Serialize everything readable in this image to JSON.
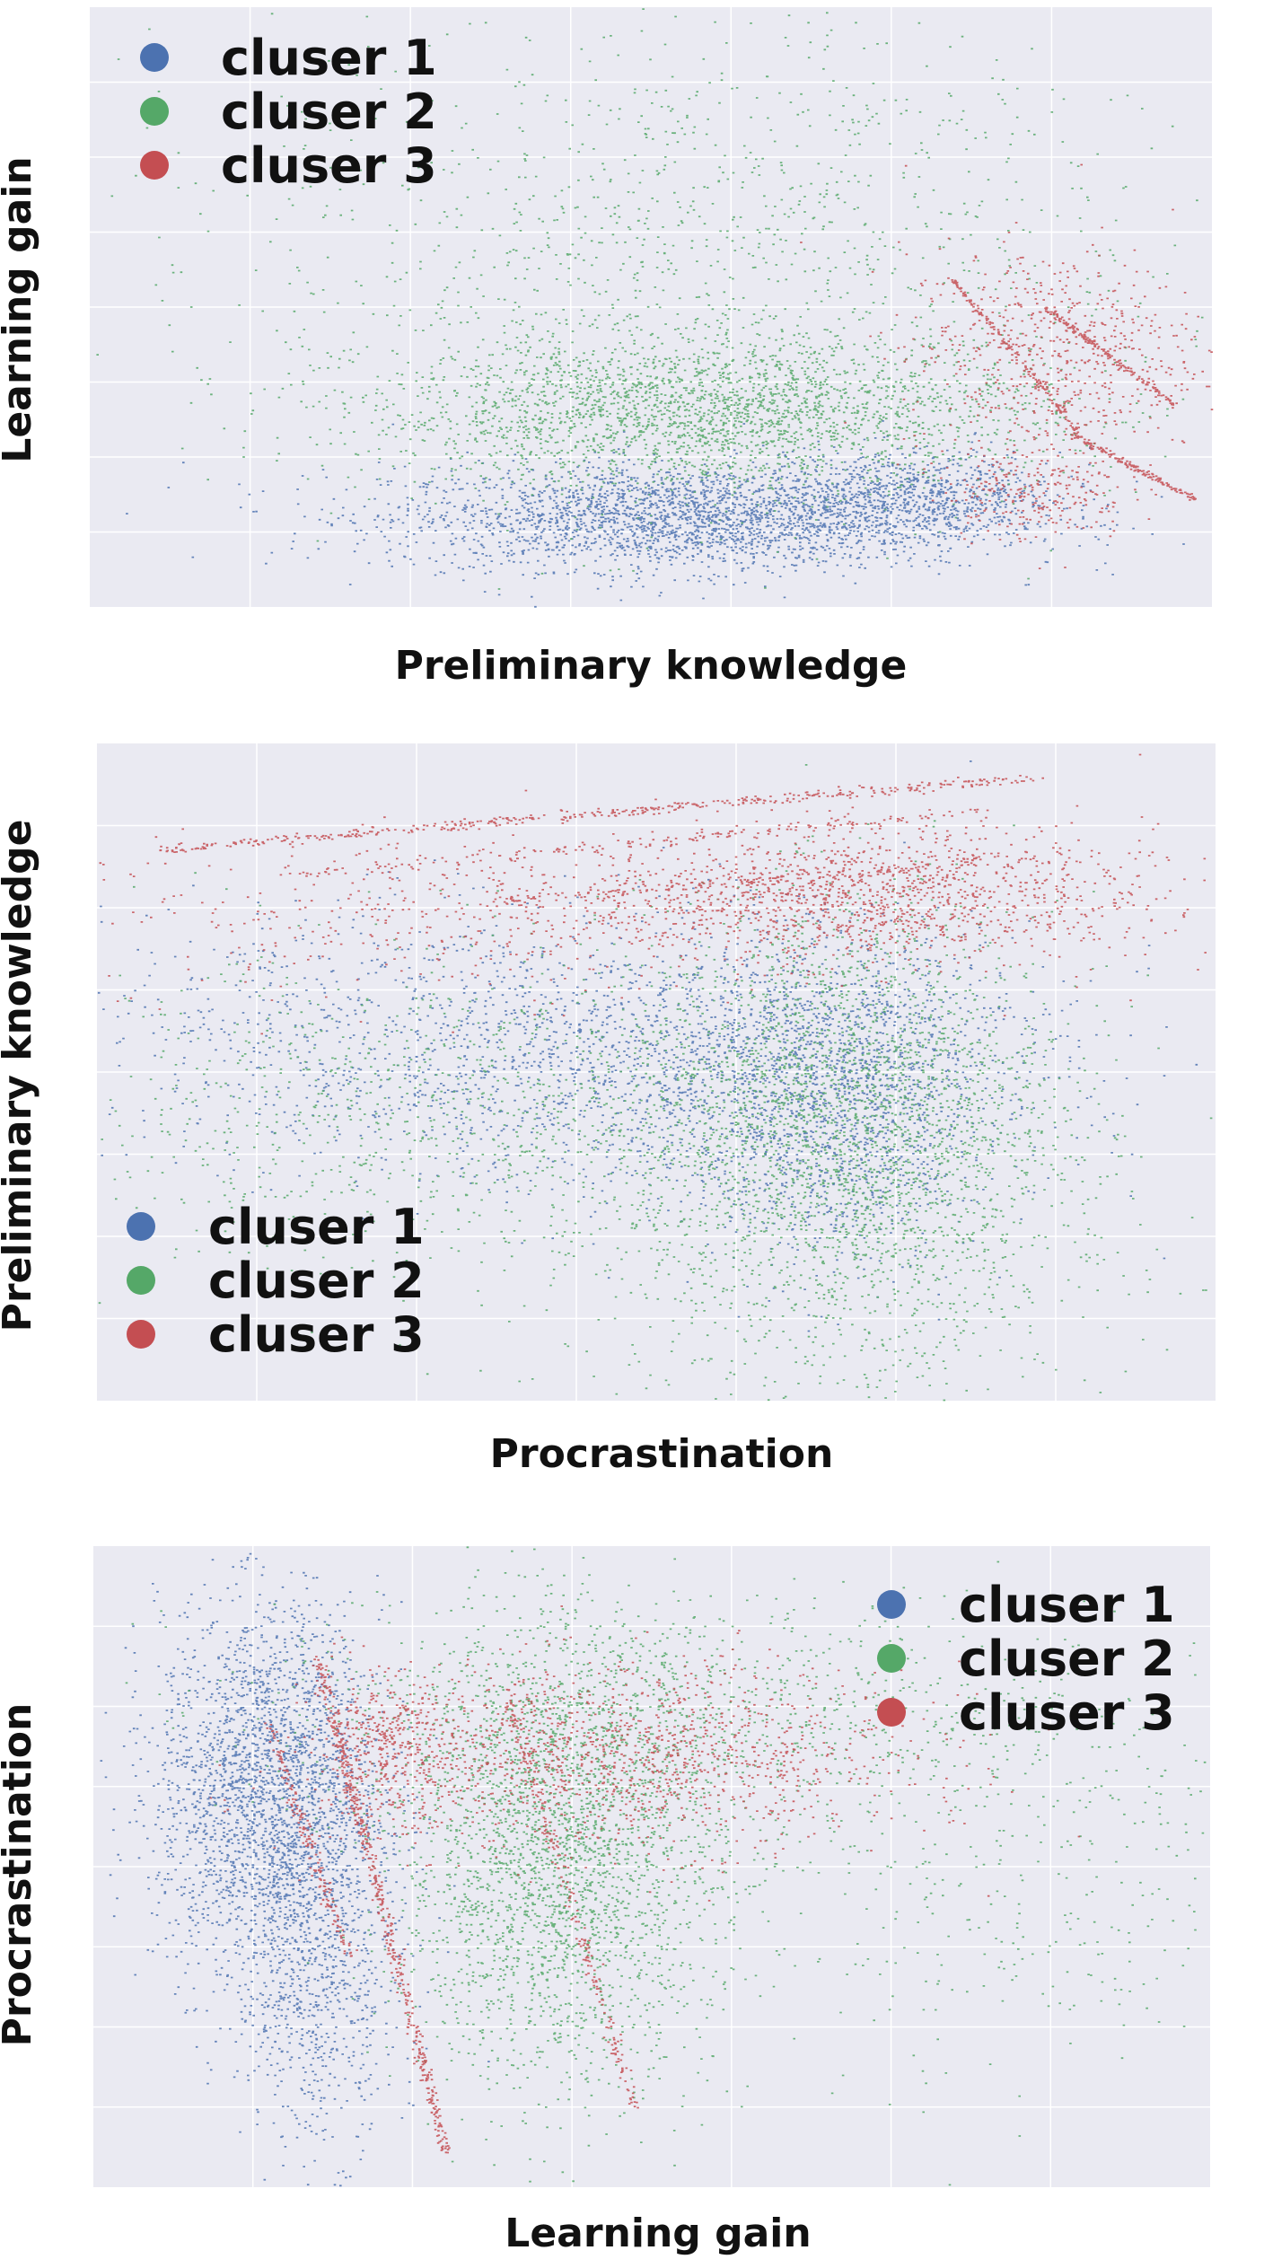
{
  "colors": {
    "cluster1": "#4c72b0",
    "cluster2": "#55a868",
    "cluster3": "#c44e52",
    "plot_bg": "#eaeaf2",
    "grid": "#ffffff"
  },
  "chart_data": [
    {
      "type": "scatter",
      "xlabel": "Preliminary knowledge",
      "ylabel": "Learning gain",
      "title": "",
      "xlim": [
        0,
        12
      ],
      "ylim": [
        0,
        8
      ],
      "grid": true,
      "tick_labels_visible": false,
      "legend_position": "top-left",
      "legend": [
        "cluser 1",
        "cluser 2",
        "cluser 3"
      ],
      "series": [
        {
          "name": "cluser 1",
          "clusters": [
            {
              "cx": 6.4,
              "cy": 1.2,
              "sx": 1.6,
              "sy": 0.35,
              "n": 2600
            },
            {
              "cx": 8.8,
              "cy": 1.5,
              "sx": 0.8,
              "sy": 0.3,
              "n": 700
            }
          ]
        },
        {
          "name": "cluser 2",
          "clusters": [
            {
              "cx": 6.6,
              "cy": 2.6,
              "sx": 1.8,
              "sy": 0.5,
              "n": 2400
            },
            {
              "cx": 6.5,
              "cy": 4.6,
              "sx": 2.4,
              "sy": 1.7,
              "n": 1300
            }
          ]
        },
        {
          "name": "cluser 3",
          "clusters": [
            {
              "cx": 10.3,
              "cy": 3.4,
              "sx": 0.8,
              "sy": 0.7,
              "n": 600
            },
            {
              "cx": 10.1,
              "cy": 1.6,
              "sx": 0.5,
              "sy": 0.35,
              "n": 260
            }
          ],
          "lines": [
            {
              "x": [
                9.2,
                10.6
              ],
              "y": [
                4.4,
                2.3
              ],
              "n": 160
            },
            {
              "x": [
                10.2,
                11.6
              ],
              "y": [
                4.0,
                2.7
              ],
              "n": 160
            },
            {
              "x": [
                10.5,
                11.8
              ],
              "y": [
                2.3,
                1.45
              ],
              "n": 160
            }
          ]
        }
      ]
    },
    {
      "type": "scatter",
      "xlabel": "Procrastination",
      "ylabel": "Preliminary knowledge",
      "title": "",
      "xlim": [
        0,
        7
      ],
      "ylim": [
        0,
        5
      ],
      "grid": true,
      "tick_labels_visible": false,
      "legend_position": "bottom-left",
      "legend": [
        "cluser 1",
        "cluser 2",
        "cluser 3"
      ],
      "series": [
        {
          "name": "cluser 1",
          "clusters": [
            {
              "cx": 3.6,
              "cy": 2.6,
              "sx": 1.2,
              "sy": 0.5,
              "n": 1900
            },
            {
              "cx": 4.6,
              "cy": 2.3,
              "sx": 0.45,
              "sy": 0.6,
              "n": 1300
            },
            {
              "cx": 1.2,
              "cy": 2.8,
              "sx": 0.8,
              "sy": 0.5,
              "n": 350
            }
          ]
        },
        {
          "name": "cluser 2",
          "clusters": [
            {
              "cx": 4.7,
              "cy": 2.2,
              "sx": 0.65,
              "sy": 0.8,
              "n": 2300
            },
            {
              "cx": 2.6,
              "cy": 2.2,
              "sx": 1.6,
              "sy": 0.6,
              "n": 1300
            },
            {
              "cx": 4.7,
              "cy": 1.0,
              "sx": 0.9,
              "sy": 0.6,
              "n": 500
            }
          ]
        },
        {
          "name": "cluser 3",
          "clusters": [
            {
              "cx": 4.8,
              "cy": 3.85,
              "sx": 0.9,
              "sy": 0.25,
              "n": 1300
            },
            {
              "cx": 2.5,
              "cy": 3.7,
              "sx": 1.4,
              "sy": 0.3,
              "n": 500
            }
          ],
          "lines": [
            {
              "x": [
                0.4,
                5.9
              ],
              "y": [
                4.2,
                4.75
              ],
              "n": 450
            },
            {
              "x": [
                1.2,
                5.6
              ],
              "y": [
                4.0,
                4.5
              ],
              "n": 160
            },
            {
              "x": [
                2.4,
                5.5
              ],
              "y": [
                3.8,
                4.1
              ],
              "n": 160
            }
          ]
        }
      ]
    },
    {
      "type": "scatter",
      "xlabel": "Learning gain",
      "ylabel": "Procrastination",
      "title": "",
      "xlim": [
        0,
        7
      ],
      "ylim": [
        0,
        7
      ],
      "grid": true,
      "tick_labels_visible": false,
      "legend_position": "top-right",
      "legend": [
        "cluser 1",
        "cluser 2",
        "cluser 3"
      ],
      "series": [
        {
          "name": "cluser 1",
          "clusters": [
            {
              "cx": 1.1,
              "cy": 4.3,
              "sx": 0.35,
              "sy": 1.0,
              "n": 2600
            },
            {
              "cx": 1.4,
              "cy": 2.2,
              "sx": 0.25,
              "sy": 0.9,
              "n": 700
            }
          ]
        },
        {
          "name": "cluser 2",
          "clusters": [
            {
              "cx": 2.9,
              "cy": 3.6,
              "sx": 0.5,
              "sy": 1.2,
              "n": 2600
            },
            {
              "cx": 3.6,
              "cy": 5.2,
              "sx": 1.3,
              "sy": 0.6,
              "n": 900
            },
            {
              "cx": 5.6,
              "cy": 3.6,
              "sx": 1.2,
              "sy": 1.2,
              "n": 500
            }
          ]
        },
        {
          "name": "cluser 3",
          "clusters": [
            {
              "cx": 3.3,
              "cy": 4.7,
              "sx": 0.9,
              "sy": 0.5,
              "n": 1300
            },
            {
              "cx": 1.8,
              "cy": 4.8,
              "sx": 0.2,
              "sy": 0.4,
              "n": 350
            }
          ],
          "lines": [
            {
              "x": [
                1.4,
                2.2
              ],
              "y": [
                5.8,
                0.4
              ],
              "n": 500
            },
            {
              "x": [
                1.1,
                1.6
              ],
              "y": [
                5.0,
                2.5
              ],
              "n": 180
            },
            {
              "x": [
                2.6,
                3.4
              ],
              "y": [
                5.3,
                0.8
              ],
              "n": 220
            }
          ]
        }
      ]
    }
  ]
}
